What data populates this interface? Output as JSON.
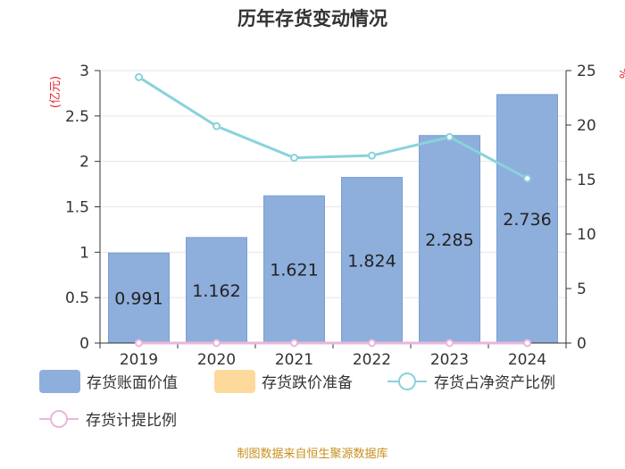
{
  "chart_data": {
    "type": "bar",
    "title": "历年存货变动情况",
    "categories": [
      "2019",
      "2020",
      "2021",
      "2022",
      "2023",
      "2024"
    ],
    "series": [
      {
        "name": "存货账面价值",
        "kind": "bar",
        "axis": "left",
        "values": [
          0.991,
          1.162,
          1.621,
          1.824,
          2.285,
          2.736
        ],
        "labels": [
          "0.991",
          "1.162",
          "1.621",
          "1.824",
          "2.285",
          "2.736"
        ]
      },
      {
        "name": "存货跌价准备",
        "kind": "bar",
        "axis": "left",
        "values": [
          0,
          0,
          0,
          0,
          0,
          0
        ]
      },
      {
        "name": "存货占净资产比例",
        "kind": "line",
        "axis": "right",
        "values": [
          24.4,
          19.9,
          17.0,
          17.2,
          18.9,
          15.1
        ]
      },
      {
        "name": "存货计提比例",
        "kind": "line",
        "axis": "right",
        "values": [
          0,
          0,
          0,
          0,
          0,
          0
        ]
      }
    ],
    "y_left": {
      "label": "(亿元)",
      "ylim": [
        0,
        3
      ],
      "ticks": [
        "0",
        "0.5",
        "1",
        "1.5",
        "2",
        "2.5",
        "3"
      ]
    },
    "y_right": {
      "label": "%",
      "ylim": [
        0,
        25
      ],
      "ticks": [
        "0",
        "5",
        "10",
        "15",
        "20",
        "25"
      ]
    },
    "grid": true,
    "legend_position": "bottom"
  },
  "colors": {
    "bar": "#8eaedc",
    "bar_stroke": "#7b9fd3",
    "impairment": "#fdd99b",
    "ratio_line": "#88d3dc",
    "provision_line": "#eab6dc",
    "axis_label_red": "#e8202a",
    "grid": "#e6e6e6",
    "source": "#c8901e"
  },
  "source": "制图数据来自恒生聚源数据库"
}
